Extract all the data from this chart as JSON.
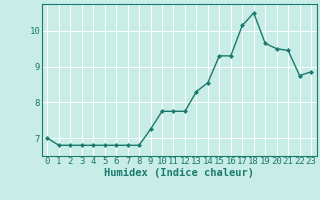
{
  "x": [
    0,
    1,
    2,
    3,
    4,
    5,
    6,
    7,
    8,
    9,
    10,
    11,
    12,
    13,
    14,
    15,
    16,
    17,
    18,
    19,
    20,
    21,
    22,
    23
  ],
  "y": [
    7.0,
    6.8,
    6.8,
    6.8,
    6.8,
    6.8,
    6.8,
    6.8,
    6.8,
    7.25,
    7.75,
    7.75,
    7.75,
    8.3,
    8.55,
    9.3,
    9.3,
    10.15,
    10.5,
    9.65,
    9.5,
    9.45,
    8.75,
    8.85
  ],
  "line_color": "#1a7a6e",
  "marker": "D",
  "marker_size": 2,
  "bg_color": "#c8ece6",
  "grid_color": "#ffffff",
  "grid_lw": 0.7,
  "xlabel": "Humidex (Indice chaleur)",
  "xlim": [
    -0.5,
    23.5
  ],
  "ylim": [
    6.5,
    10.75
  ],
  "yticks": [
    7,
    8,
    9,
    10
  ],
  "xticks": [
    0,
    1,
    2,
    3,
    4,
    5,
    6,
    7,
    8,
    9,
    10,
    11,
    12,
    13,
    14,
    15,
    16,
    17,
    18,
    19,
    20,
    21,
    22,
    23
  ],
  "tick_label_fontsize": 6.5,
  "xlabel_fontsize": 7.5,
  "line_width": 1.0
}
